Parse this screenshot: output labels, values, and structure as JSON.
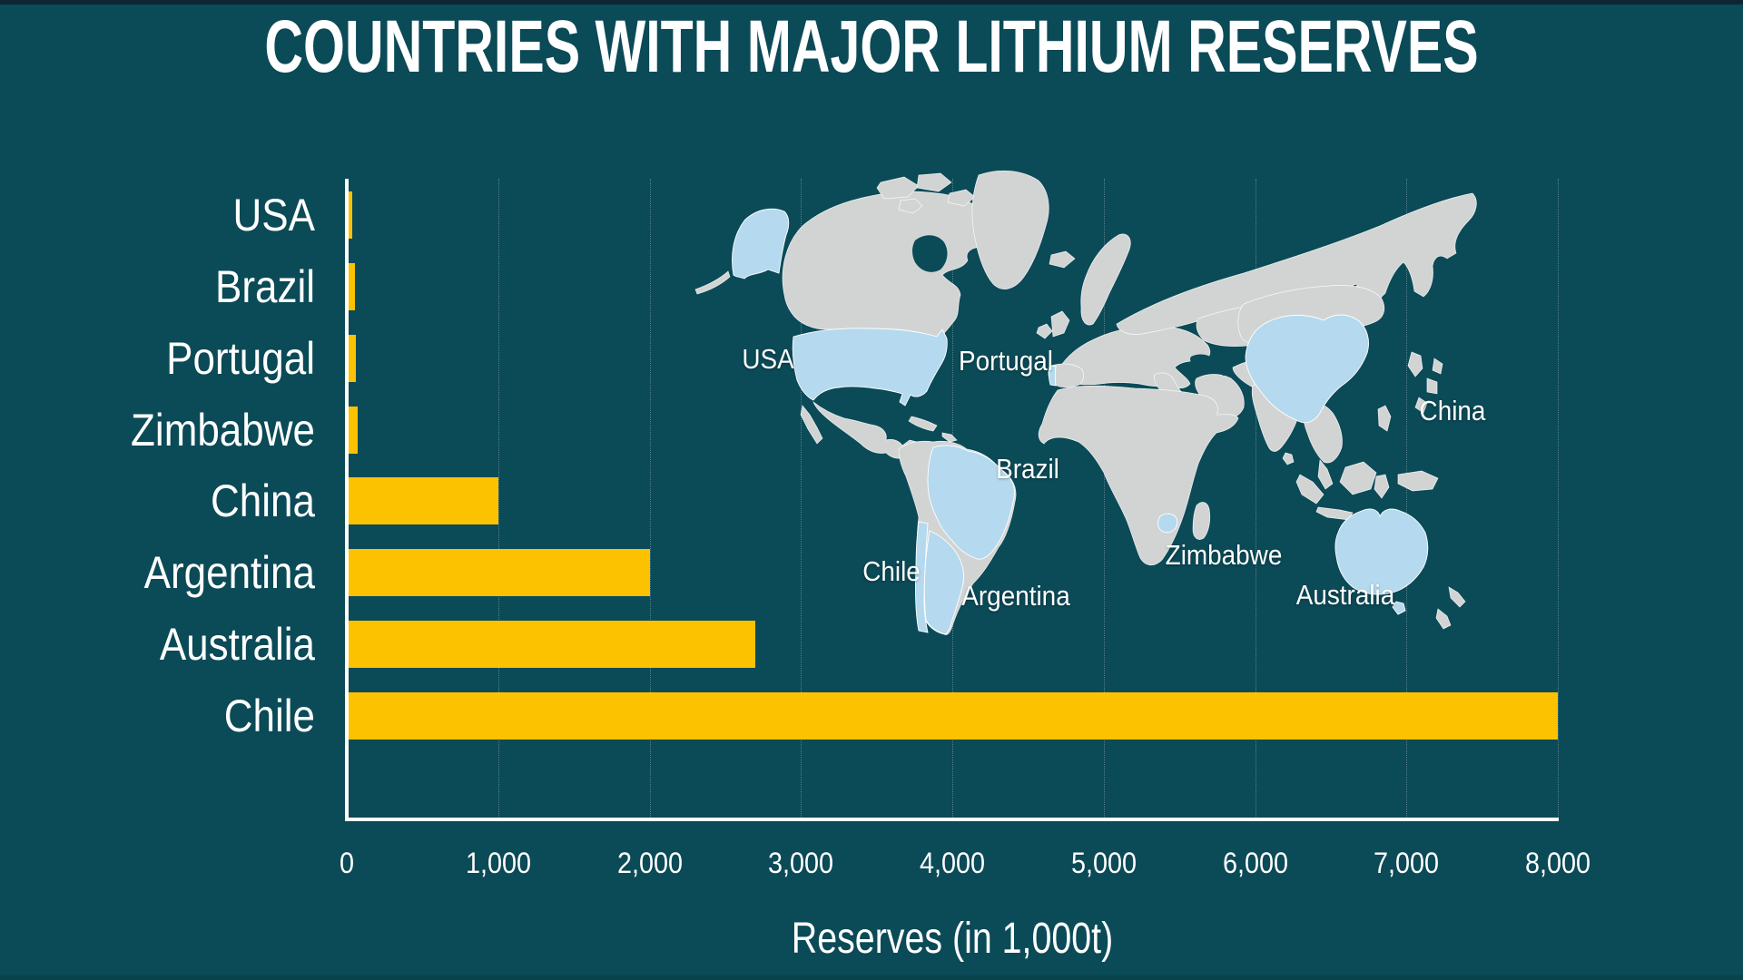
{
  "page_title": "COUNTRIES WITH MAJOR LITHIUM RESERVES",
  "chart_data": {
    "type": "bar",
    "orientation": "horizontal",
    "title": "COUNTRIES WITH MAJOR LITHIUM RESERVES",
    "categories": [
      "USA",
      "Brazil",
      "Portugal",
      "Zimbabwe",
      "China",
      "Argentina",
      "Australia",
      "Chile"
    ],
    "values": [
      35,
      54,
      60,
      70,
      1000,
      2000,
      2700,
      8000
    ],
    "xlabel": "Reserves (in 1,000t)",
    "xlim": [
      0,
      8000
    ],
    "xticks": [
      "0",
      "1,000",
      "2,000",
      "3,000",
      "4,000",
      "5,000",
      "6,000",
      "7,000",
      "8,000"
    ],
    "grid": true,
    "legend": false,
    "unit": "thousand tonnes"
  },
  "map": {
    "labels": [
      {
        "name": "USA"
      },
      {
        "name": "Portugal"
      },
      {
        "name": "Brazil"
      },
      {
        "name": "Chile"
      },
      {
        "name": "Argentina"
      },
      {
        "name": "Zimbabwe"
      },
      {
        "name": "China"
      },
      {
        "name": "Australia"
      }
    ],
    "highlighted_countries": [
      "USA",
      "Brazil",
      "Portugal",
      "Zimbabwe",
      "China",
      "Argentina",
      "Australia",
      "Chile"
    ]
  },
  "colors": {
    "background": "#0b4a57",
    "bar": "#fcc200",
    "text": "#ffffff",
    "map_land": "#d2d4d4",
    "map_highlight": "#b5d9ee"
  }
}
